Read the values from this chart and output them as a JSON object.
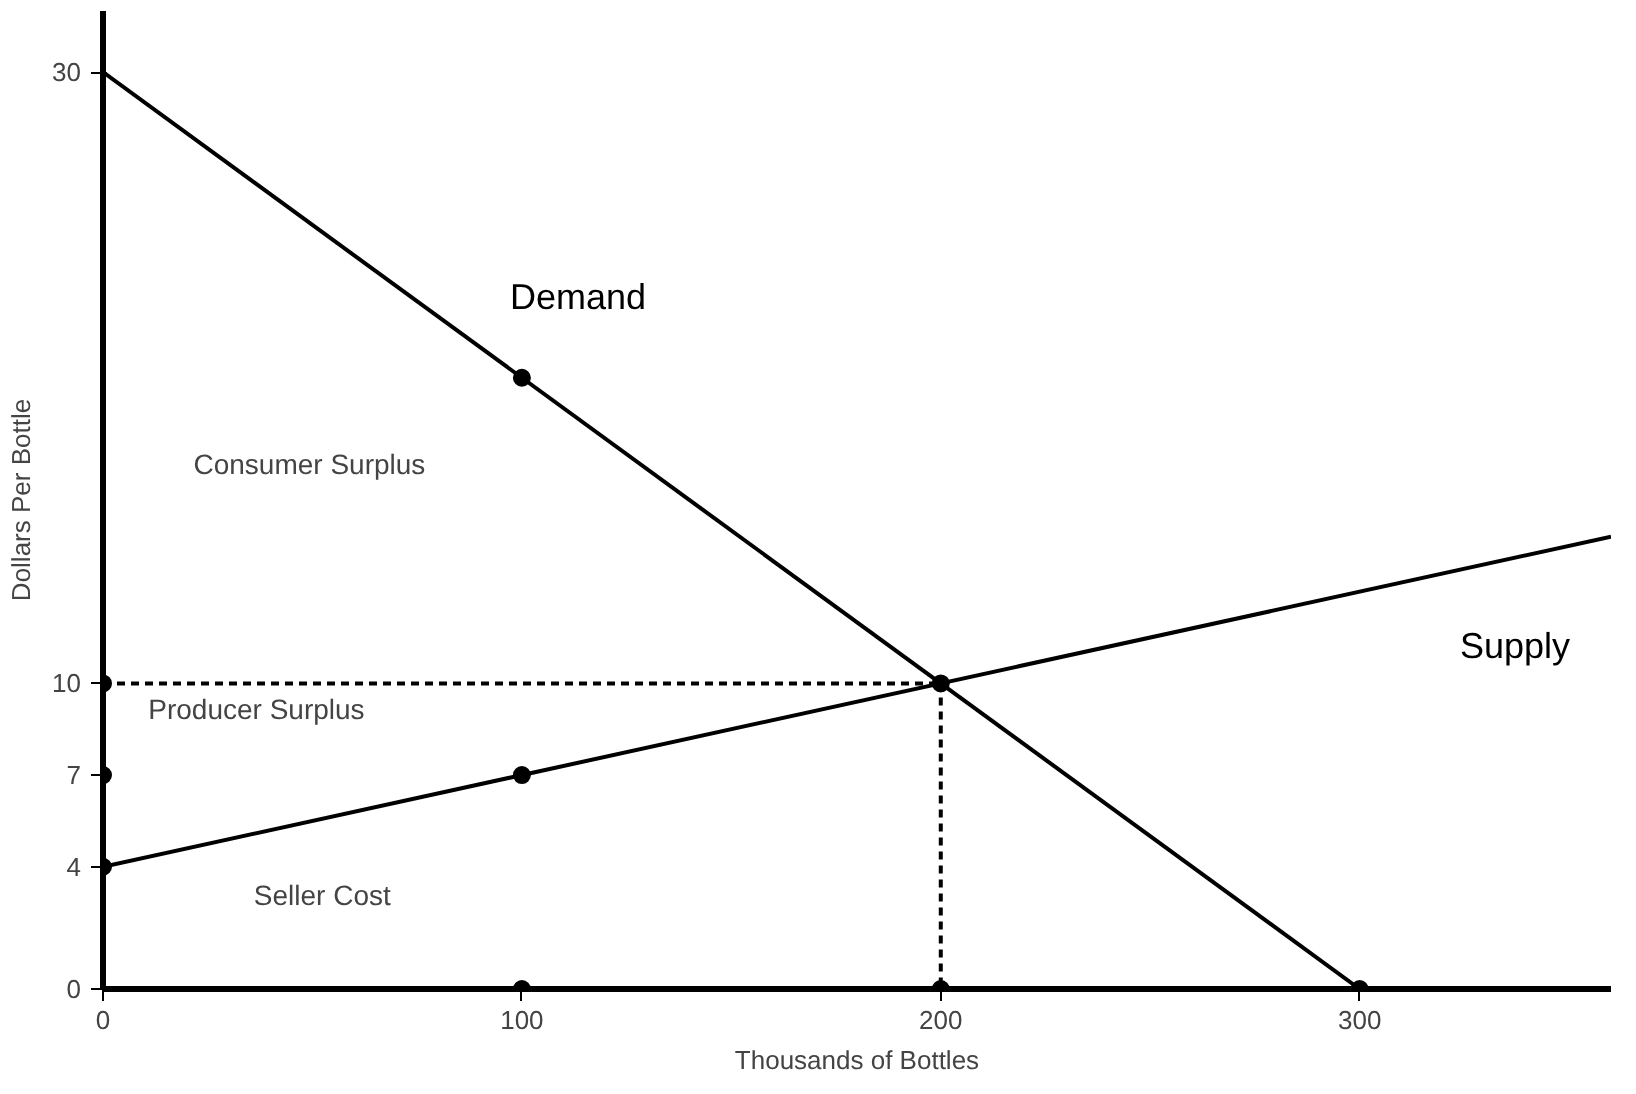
{
  "chart_data": {
    "type": "line",
    "xlabel": "Thousands of Bottles",
    "ylabel": "Dollars Per Bottle",
    "xlim": [
      0,
      360
    ],
    "ylim": [
      0,
      32
    ],
    "xticks": [
      0,
      100,
      200,
      300
    ],
    "yticks": [
      0,
      4,
      7,
      10,
      30
    ],
    "grid": false,
    "marker": "none",
    "series": [
      {
        "name": "Demand",
        "color": "#000000",
        "x": [
          0,
          300
        ],
        "values": [
          30,
          0
        ]
      },
      {
        "name": "Supply",
        "color": "#000000",
        "x": [
          0,
          360
        ],
        "values": [
          4,
          14.8
        ]
      },
      {
        "type": "line",
        "line_style": "dashed",
        "color": "#000000",
        "x": [
          0,
          200
        ],
        "values": [
          10,
          10
        ]
      },
      {
        "type": "line",
        "line_style": "dashed",
        "color": "#000000",
        "x": [
          200,
          200
        ],
        "values": [
          10,
          0
        ]
      },
      {
        "type": "scatter",
        "marker": "circle",
        "color": "#000000",
        "x": [
          0,
          0,
          0,
          100,
          100,
          100,
          200,
          200,
          300
        ],
        "values": [
          4,
          7,
          10,
          20,
          7,
          0,
          10,
          0,
          0
        ]
      }
    ],
    "annotations": [
      "Consumer Surplus",
      "Producer Surplus",
      "Seller Cost"
    ]
  }
}
